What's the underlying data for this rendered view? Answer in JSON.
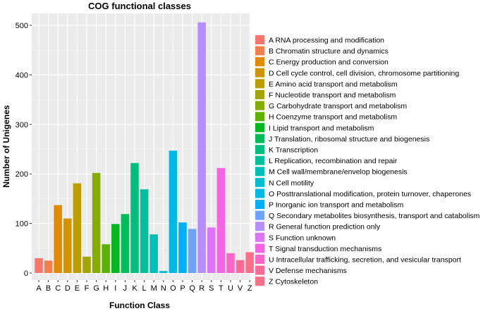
{
  "chart_data": {
    "type": "bar",
    "title": "COG functional classes",
    "xlabel": "Function Class",
    "ylabel": "Number of Unigenes",
    "ylim": [
      0,
      520
    ],
    "yticks": [
      0,
      100,
      200,
      300,
      400,
      500
    ],
    "grid": true,
    "legend_position": "right",
    "categories": [
      "A",
      "B",
      "C",
      "D",
      "E",
      "F",
      "G",
      "H",
      "I",
      "J",
      "K",
      "L",
      "M",
      "N",
      "O",
      "P",
      "Q",
      "R",
      "S",
      "T",
      "U",
      "V",
      "Z"
    ],
    "values": [
      30,
      25,
      137,
      110,
      181,
      33,
      202,
      58,
      99,
      119,
      222,
      169,
      78,
      4,
      247,
      102,
      89,
      506,
      92,
      212,
      40,
      26,
      42
    ],
    "colors": [
      "#F8766D",
      "#F07F4C",
      "#E38900",
      "#D09400",
      "#BB9D00",
      "#A3A500",
      "#85AD00",
      "#5BB300",
      "#00B81F",
      "#00BC5A",
      "#00BF7D",
      "#00C19B",
      "#00BFB6",
      "#00BDCF",
      "#00B8E5",
      "#00AEF8",
      "#6FA2FF",
      "#B78EFF",
      "#DE75F9",
      "#F564E3",
      "#FF64C6",
      "#FF6A98",
      "#FD6F86"
    ],
    "legend": [
      "A RNA processing and modification",
      "B Chromatin structure and dynamics",
      "C Energy production and conversion",
      "D Cell cycle control, cell division, chromosome partitioning",
      "E Amino acid transport and metabolism",
      "F Nucleotide transport and metabolism",
      "G Carbohydrate transport and metabolism",
      "H Coenzyme transport and metabolism",
      "I  Lipid transport and metabolism",
      "J Translation, ribosomal structure and biogenesis",
      "K Transcription",
      "L Replication, recombination and repair",
      "M Cell wall/membrane/envelop biogenesis",
      "N Cell motility",
      "O Posttranslational modification, protein turnover, chaperones",
      "P Inorganic ion transport and metabolism",
      "Q Secondary metabolites biosynthesis, transport and catabolism",
      "R General function prediction only",
      "S Function unknown",
      "T Signal transduction mechanisms",
      "U Intracellular trafficking, secretion, and vesicular transport",
      "V Defense mechanisms",
      "Z Cytoskeleton"
    ]
  }
}
